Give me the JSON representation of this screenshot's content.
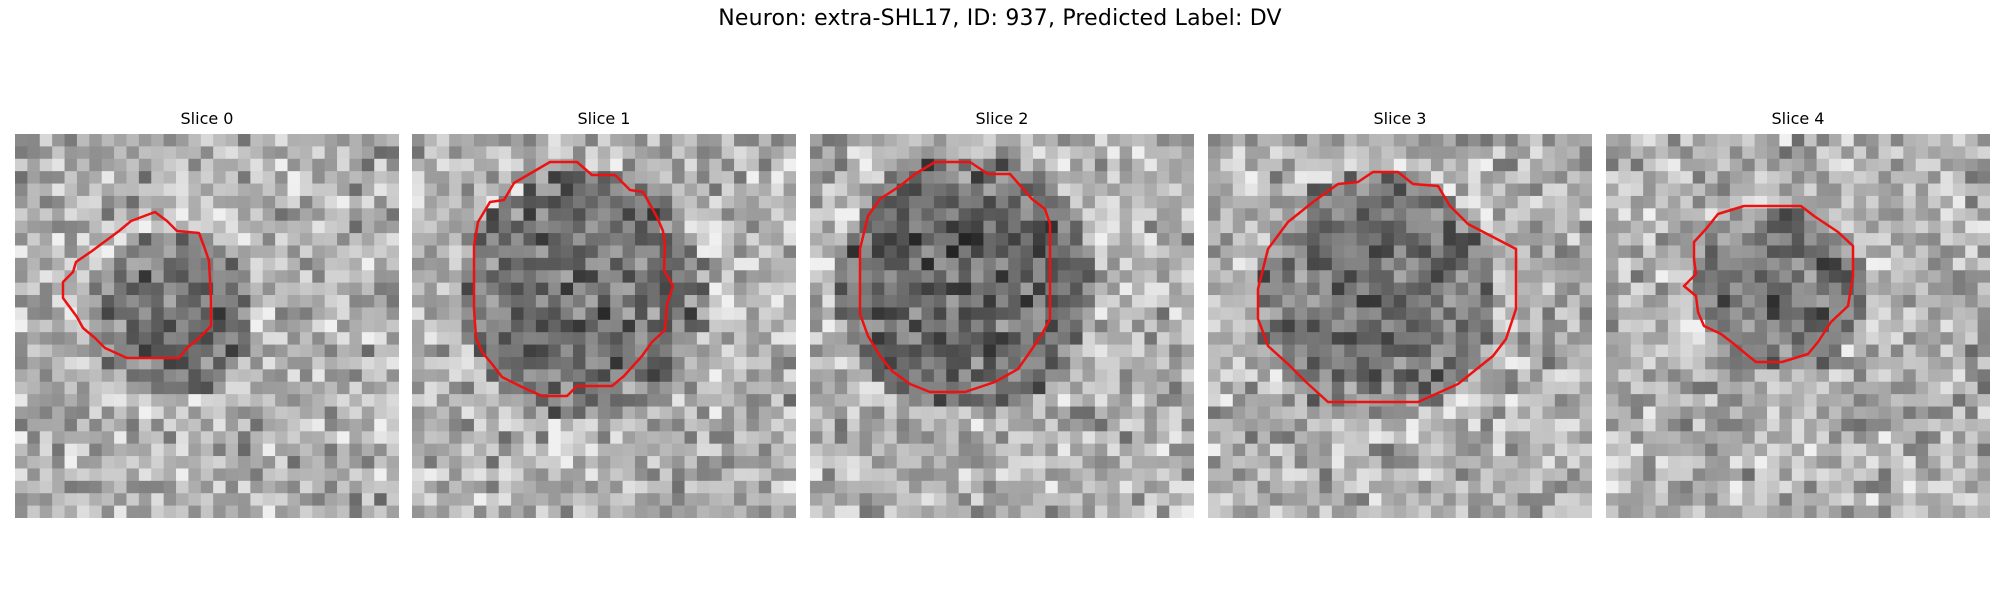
{
  "figure": {
    "title": "Neuron: extra-SHL17, ID: 937, Predicted Label: DV"
  },
  "slices": [
    {
      "label": "Slice 0",
      "seed": 11,
      "outline_color": "#ee1111"
    },
    {
      "label": "Slice 1",
      "seed": 23,
      "outline_color": "#ee1111"
    },
    {
      "label": "Slice 2",
      "seed": 37,
      "outline_color": "#ee1111"
    },
    {
      "label": "Slice 3",
      "seed": 53,
      "outline_color": "#ee1111"
    },
    {
      "label": "Slice 4",
      "seed": 71,
      "outline_color": "#ee1111"
    }
  ]
}
